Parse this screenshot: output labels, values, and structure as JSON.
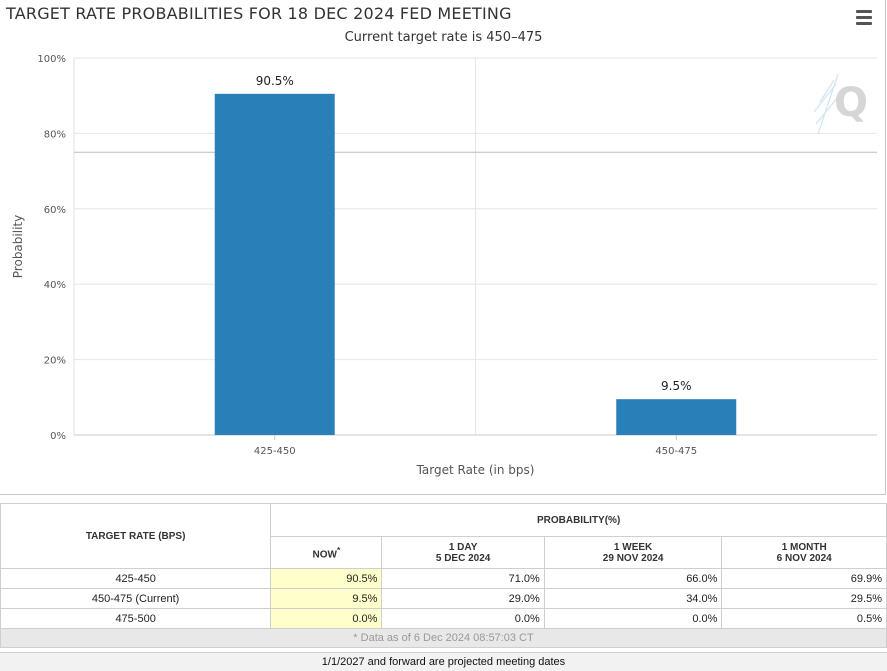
{
  "header": {
    "title": "TARGET RATE PROBABILITIES FOR 18 DEC 2024 FED MEETING",
    "subtitle": "Current target rate is 450–475"
  },
  "colors": {
    "bar": "#2980b9",
    "grid": "#e6e6e6",
    "now_highlight": "#ffffcc"
  },
  "chart_data": {
    "type": "bar",
    "categories": [
      "425-450",
      "450-475"
    ],
    "values": [
      90.5,
      9.5
    ],
    "data_labels": [
      "90.5%",
      "9.5%"
    ],
    "title": "TARGET RATE PROBABILITIES FOR 18 DEC 2024 FED MEETING",
    "subtitle": "Current target rate is 450–475",
    "xlabel": "Target Rate (in bps)",
    "ylabel": "Probability",
    "ylim": [
      0,
      100
    ],
    "yticks": [
      0,
      20,
      40,
      60,
      80,
      100
    ],
    "ytick_labels": [
      "0%",
      "20%",
      "40%",
      "60%",
      "80%",
      "100%"
    ],
    "reference_line": 75,
    "grid": true
  },
  "table": {
    "target_rate_header": "TARGET RATE (BPS)",
    "probability_header": "PROBABILITY(%)",
    "columns": [
      {
        "line1": "NOW",
        "line2": "",
        "marker": "*"
      },
      {
        "line1": "1 DAY",
        "line2": "5 DEC 2024",
        "marker": ""
      },
      {
        "line1": "1 WEEK",
        "line2": "29 NOV 2024",
        "marker": ""
      },
      {
        "line1": "1 MONTH",
        "line2": "6 NOV 2024",
        "marker": ""
      }
    ],
    "rows": [
      {
        "rate": "425-450",
        "values": [
          "90.5%",
          "71.0%",
          "66.0%",
          "69.9%"
        ]
      },
      {
        "rate": "450-475 (Current)",
        "values": [
          "9.5%",
          "29.0%",
          "34.0%",
          "29.5%"
        ]
      },
      {
        "rate": "475-500",
        "values": [
          "0.0%",
          "0.0%",
          "0.0%",
          "0.5%"
        ]
      }
    ],
    "footnote": "* Data as of 6 Dec 2024 08:57:03 CT"
  },
  "footer": {
    "note": "1/1/2027 and forward are projected meeting dates"
  }
}
